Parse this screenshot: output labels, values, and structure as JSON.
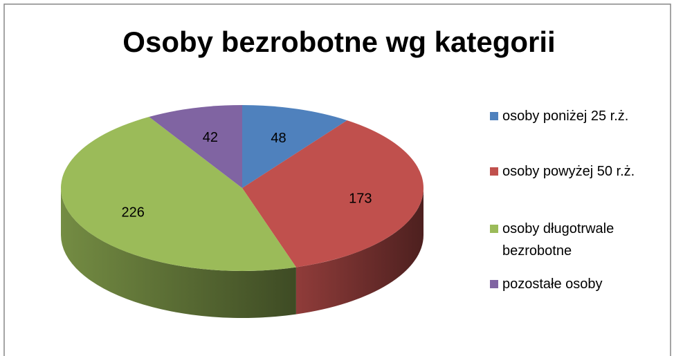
{
  "chart_data": {
    "type": "pie",
    "title": "Osoby bezrobotne wg kategorii",
    "categories": [
      "osoby poniżej 25 r.ż.",
      "osoby powyżej 50 r.ż.",
      "osoby długotrwale bezrobotne",
      "pozostałe osoby"
    ],
    "values": [
      48,
      173,
      226,
      42
    ],
    "colors": [
      "#4f81bd",
      "#c0504d",
      "#9bbb59",
      "#8064a2"
    ],
    "legend": "right"
  }
}
